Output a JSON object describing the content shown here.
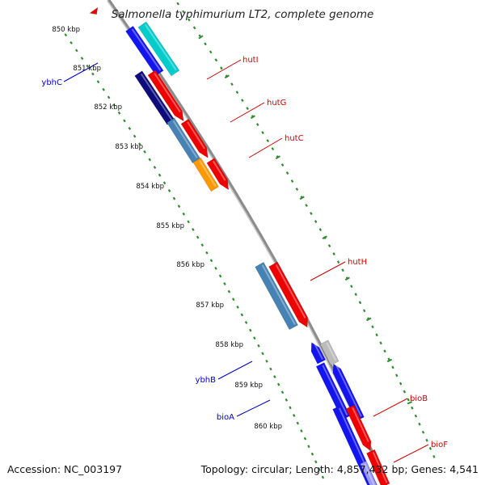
{
  "title": "Salmonella typhimurium LT2, complete genome",
  "footer": {
    "accession": "Accession: NC_003197",
    "summary": "Topology: circular; Length: 4,857,432 bp; Genes: 4,541"
  },
  "colors": {
    "backbone": "#8c8c8c",
    "tick": "#2e8b2e",
    "label_plus": "#cc0000",
    "label_minus": "#0000cc",
    "cds_red": "#ee0000",
    "cds_blue": "#1414ee",
    "cds_navy": "#0c0c7c",
    "cds_steel": "#4682b4",
    "cds_orange": "#ff9900",
    "cds_cyan": "#00cccc",
    "cds_gray": "#bbbbbb"
  },
  "kbp_labels": [
    "850 kbp",
    "851 kbp",
    "852 kbp",
    "853 kbp",
    "854 kbp",
    "855 kbp",
    "856 kbp",
    "857 kbp",
    "858 kbp",
    "859 kbp",
    "860 kbp"
  ],
  "genes": [
    {
      "id": "hutI",
      "label": "hutI",
      "strand": "plus"
    },
    {
      "id": "hutG",
      "label": "hutG",
      "strand": "plus"
    },
    {
      "id": "hutC",
      "label": "hutC",
      "strand": "plus"
    },
    {
      "id": "hutH",
      "label": "hutH",
      "strand": "plus"
    },
    {
      "id": "bioB",
      "label": "bioB",
      "strand": "plus"
    },
    {
      "id": "bioF",
      "label": "bioF",
      "strand": "plus"
    },
    {
      "id": "ybhC",
      "label": "ybhC",
      "strand": "minus"
    },
    {
      "id": "ybhB",
      "label": "ybhB",
      "strand": "minus"
    },
    {
      "id": "bioA",
      "label": "bioA",
      "strand": "minus"
    }
  ]
}
